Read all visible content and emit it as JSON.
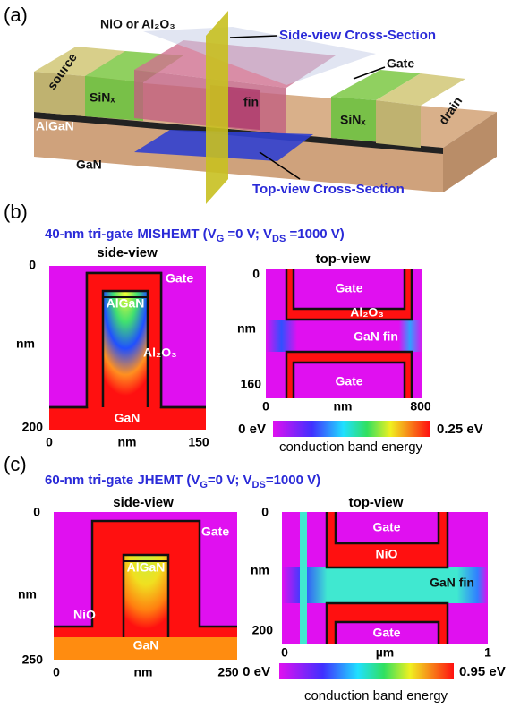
{
  "panel_a": {
    "label": "(a)",
    "oxide": "NiO or Al₂O₃",
    "side_view": "Side-view Cross-Section",
    "gate": "Gate",
    "source": "source",
    "sinx_left": "SiNₓ",
    "fin": "fin",
    "algan": "AlGaN",
    "sinx_right": "SiNₓ",
    "drain": "drain",
    "gan": "GaN",
    "top_view": "Top-view Cross-Section"
  },
  "panel_b": {
    "label": "(b)",
    "title": [
      "40-nm tri-gate MISHEMT (V",
      "G",
      " =0 V; V",
      "DS",
      " =1000 V)"
    ],
    "side_view": {
      "title": "side-view",
      "yticks": [
        0,
        200
      ],
      "ylabel": "nm",
      "xticks": [
        0,
        150
      ],
      "xlabel": "nm",
      "labels": [
        "Gate",
        "AlGaN",
        "Al₂O₃",
        "GaN"
      ]
    },
    "top_view": {
      "title": "top-view",
      "yticks": [
        0,
        160
      ],
      "ylabel": "nm",
      "xticks": [
        0,
        800
      ],
      "xlabel": "nm",
      "labels": [
        "Gate",
        "Al₂O₃",
        "GaN fin",
        "Gate"
      ]
    },
    "colorbar": {
      "min": "0 eV",
      "max": "0.25 eV",
      "label": "conduction band energy"
    }
  },
  "panel_c": {
    "label": "(c)",
    "title": [
      "60-nm tri-gate JHEMT (V",
      "G",
      "=0 V; V",
      "DS",
      "=1000 V)"
    ],
    "side_view": {
      "title": "side-view",
      "yticks": [
        0,
        250
      ],
      "ylabel": "nm",
      "xticks": [
        0,
        250
      ],
      "xlabel": "nm",
      "labels": [
        "Gate",
        "AlGaN",
        "NiO",
        "GaN"
      ]
    },
    "top_view": {
      "title": "top-view",
      "yticks": [
        0,
        200
      ],
      "ylabel": "nm",
      "xticks": [
        0,
        1
      ],
      "xlabel": "µm",
      "labels": [
        "Gate",
        "NiO",
        "GaN fin",
        "Gate"
      ]
    },
    "colorbar": {
      "min": "0 eV",
      "max": "0.95 eV",
      "label": "conduction band energy"
    }
  }
}
